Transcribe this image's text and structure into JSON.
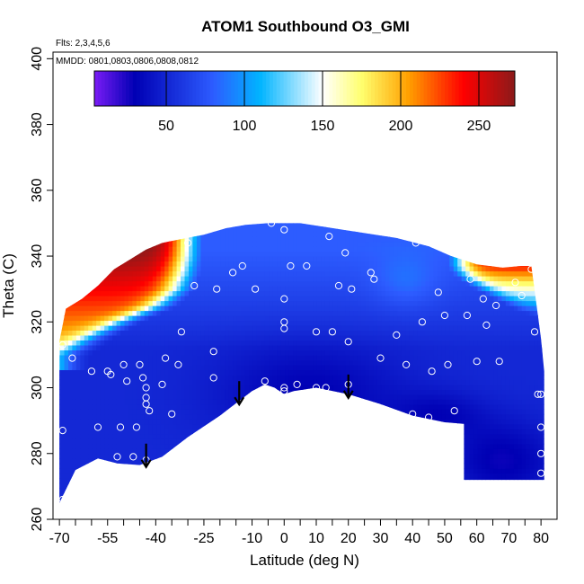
{
  "chart_data": {
    "type": "heatmap",
    "title": "ATOM1 Southbound O3_GMI",
    "annotations": {
      "flights": "Flts: 2,3,4,5,6",
      "dates": "MMDD: 0801,0803,0806,0808,0812"
    },
    "xlabel": "Latitude (deg N)",
    "ylabel": "Theta (C)",
    "xlim": [
      -72,
      85
    ],
    "ylim": [
      260,
      402
    ],
    "x_ticks": [
      -70,
      -55,
      -40,
      -25,
      -10,
      0,
      10,
      20,
      30,
      40,
      50,
      60,
      70,
      80
    ],
    "x_minor_ticks": [
      -65,
      -60,
      -50,
      -45,
      -35,
      -30,
      -20,
      -15,
      -5,
      5,
      15,
      25,
      35,
      45,
      55,
      65,
      75
    ],
    "y_ticks": [
      260,
      280,
      300,
      320,
      340,
      360,
      380,
      400
    ],
    "colorbar": {
      "min": 4,
      "max": 273,
      "ticks": [
        50,
        100,
        150,
        200,
        250
      ],
      "colors": [
        "#7a1cf5",
        "#0000b4",
        "#2d5cff",
        "#00b4ff",
        "#ffffff",
        "#ffff6e",
        "#ffa000",
        "#ff0000",
        "#8b1a1a"
      ],
      "stops": [
        4,
        30,
        80,
        110,
        150,
        175,
        205,
        240,
        273
      ]
    },
    "domain": {
      "top": [
        [
          -70,
          314
        ],
        [
          -68,
          324
        ],
        [
          -63,
          327
        ],
        [
          -58,
          331
        ],
        [
          -53,
          336
        ],
        [
          -48,
          339
        ],
        [
          -43,
          342
        ],
        [
          -38,
          344
        ],
        [
          -33,
          345
        ],
        [
          -25,
          346.5
        ],
        [
          -18,
          348.5
        ],
        [
          -12,
          349.5
        ],
        [
          -5,
          350
        ],
        [
          5,
          350
        ],
        [
          15,
          348.5
        ],
        [
          25,
          347
        ],
        [
          35,
          345.5
        ],
        [
          45,
          343
        ],
        [
          52,
          340
        ],
        [
          60,
          337.5
        ],
        [
          68,
          336.5
        ],
        [
          74,
          337
        ],
        [
          77,
          337
        ],
        [
          80,
          315
        ],
        [
          81,
          305
        ]
      ],
      "bottom": [
        [
          -70,
          265
        ],
        [
          -65,
          275
        ],
        [
          -58,
          278.5
        ],
        [
          -52,
          277
        ],
        [
          -45,
          276.5
        ],
        [
          -38,
          279
        ],
        [
          -30,
          285
        ],
        [
          -20,
          291.5
        ],
        [
          -10,
          299
        ],
        [
          -6,
          301
        ],
        [
          -3,
          300
        ],
        [
          0,
          298
        ],
        [
          3,
          299
        ],
        [
          10,
          300
        ],
        [
          20,
          298
        ],
        [
          30,
          295
        ],
        [
          40,
          291.5
        ],
        [
          50,
          289.5
        ],
        [
          56,
          289
        ],
        [
          56,
          272
        ],
        [
          81,
          272
        ]
      ]
    },
    "high_region": {
      "lat_edge": [
        [
          310,
          -70
        ],
        [
          315,
          -62
        ],
        [
          320,
          -52
        ],
        [
          325,
          -40
        ],
        [
          330,
          -34
        ],
        [
          335,
          -32
        ],
        [
          340,
          -31
        ],
        [
          344,
          -31
        ]
      ],
      "top_ref": 345,
      "bottom_ref": 310
    },
    "high_region_north": {
      "lat_edge": [
        [
          322,
          76
        ],
        [
          326,
          70
        ],
        [
          330,
          63
        ],
        [
          334,
          57
        ],
        [
          337,
          55
        ]
      ],
      "peak": 235
    },
    "observations": [
      [
        -69,
        266
      ],
      [
        -69,
        287
      ],
      [
        -69,
        313
      ],
      [
        -66,
        309
      ],
      [
        -60,
        305
      ],
      [
        -58,
        277
      ],
      [
        -58,
        288
      ],
      [
        -55,
        305
      ],
      [
        -54,
        304
      ],
      [
        -52,
        279
      ],
      [
        -51,
        288
      ],
      [
        -50,
        307
      ],
      [
        -49,
        302
      ],
      [
        -47,
        279
      ],
      [
        -46,
        288
      ],
      [
        -45,
        307
      ],
      [
        -44,
        303
      ],
      [
        -43,
        295
      ],
      [
        -43,
        300
      ],
      [
        -43,
        297
      ],
      [
        -43,
        278
      ],
      [
        -42,
        293
      ],
      [
        -38,
        301
      ],
      [
        -37,
        309
      ],
      [
        -35,
        292
      ],
      [
        -33,
        307
      ],
      [
        -32,
        317
      ],
      [
        -30,
        344
      ],
      [
        -28,
        331
      ],
      [
        -22,
        303
      ],
      [
        -22,
        311
      ],
      [
        -21,
        330
      ],
      [
        -16,
        335
      ],
      [
        -13,
        337
      ],
      [
        -9,
        330
      ],
      [
        -6,
        302
      ],
      [
        -4,
        350
      ],
      [
        0,
        300
      ],
      [
        0,
        327
      ],
      [
        0,
        318
      ],
      [
        0,
        320
      ],
      [
        0,
        299
      ],
      [
        0,
        348
      ],
      [
        2,
        337
      ],
      [
        4,
        301
      ],
      [
        7,
        337
      ],
      [
        10,
        300
      ],
      [
        10,
        317
      ],
      [
        13,
        300
      ],
      [
        14,
        346
      ],
      [
        15,
        317
      ],
      [
        17,
        331
      ],
      [
        19,
        341
      ],
      [
        20,
        314
      ],
      [
        20,
        301
      ],
      [
        21,
        330
      ],
      [
        27,
        335
      ],
      [
        28,
        333
      ],
      [
        30,
        309
      ],
      [
        35,
        316
      ],
      [
        38,
        307
      ],
      [
        40,
        292
      ],
      [
        41,
        344
      ],
      [
        43,
        320
      ],
      [
        45,
        291
      ],
      [
        46,
        305
      ],
      [
        48,
        329
      ],
      [
        50,
        322
      ],
      [
        51,
        307
      ],
      [
        53,
        293
      ],
      [
        57,
        322
      ],
      [
        58,
        333
      ],
      [
        60,
        308
      ],
      [
        62,
        327
      ],
      [
        63,
        319
      ],
      [
        66,
        325
      ],
      [
        67,
        308
      ],
      [
        72,
        332
      ],
      [
        74,
        328
      ],
      [
        77,
        336
      ],
      [
        78,
        317
      ],
      [
        79,
        298
      ],
      [
        80,
        298
      ],
      [
        80,
        288
      ],
      [
        80,
        280
      ],
      [
        80,
        274
      ]
    ],
    "arrows": [
      [
        -43,
        283
      ],
      [
        -14,
        302
      ],
      [
        20,
        304
      ]
    ]
  }
}
